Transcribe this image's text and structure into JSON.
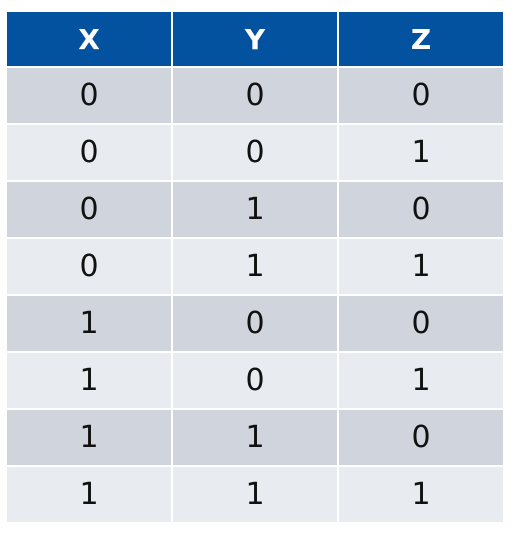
{
  "table": {
    "headers": [
      "X",
      "Y",
      "Z"
    ],
    "rows": [
      [
        "0",
        "0",
        "0"
      ],
      [
        "0",
        "0",
        "1"
      ],
      [
        "0",
        "1",
        "0"
      ],
      [
        "0",
        "1",
        "1"
      ],
      [
        "1",
        "0",
        "0"
      ],
      [
        "1",
        "0",
        "1"
      ],
      [
        "1",
        "1",
        "0"
      ],
      [
        "1",
        "1",
        "1"
      ]
    ],
    "colors": {
      "header_bg": "#03529f",
      "header_text": "#ffffff",
      "row_dark": "#cfd4dd",
      "row_light": "#e8ebf0",
      "cell_text": "#111111"
    }
  }
}
